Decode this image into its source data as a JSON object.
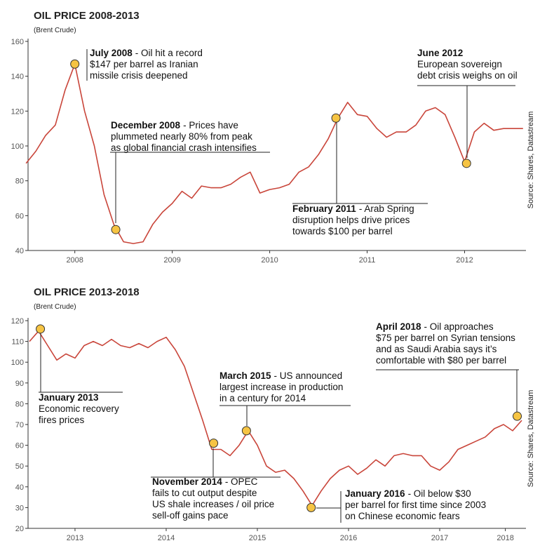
{
  "chart_data": [
    {
      "type": "line",
      "title": "OIL PRICE 2008-2013",
      "subtitle": "(Brent Crude)",
      "source": "Source: Shares, Datastream",
      "color": "#c9453a",
      "x": [
        2007.5,
        2007.6,
        2007.7,
        2007.8,
        2007.9,
        2008.0,
        2008.1,
        2008.2,
        2008.3,
        2008.4,
        2008.5,
        2008.6,
        2008.7,
        2008.8,
        2008.9,
        2009.0,
        2009.1,
        2009.2,
        2009.3,
        2009.4,
        2009.5,
        2009.6,
        2009.7,
        2009.8,
        2009.9,
        2010.0,
        2010.1,
        2010.2,
        2010.3,
        2010.4,
        2010.5,
        2010.6,
        2010.7,
        2010.8,
        2010.9,
        2011.0,
        2011.1,
        2011.2,
        2011.3,
        2011.4,
        2011.5,
        2011.6,
        2011.7,
        2011.8,
        2011.9,
        2012.0,
        2012.1,
        2012.2,
        2012.3,
        2012.4,
        2012.5,
        2012.6
      ],
      "values": [
        90,
        97,
        106,
        112,
        132,
        147,
        120,
        100,
        72,
        55,
        45,
        44,
        45,
        55,
        62,
        67,
        74,
        70,
        77,
        76,
        76,
        78,
        82,
        85,
        73,
        75,
        76,
        78,
        85,
        88,
        95,
        104,
        116,
        125,
        118,
        117,
        110,
        105,
        108,
        108,
        112,
        120,
        122,
        118,
        105,
        91,
        108,
        113,
        109,
        110,
        110,
        110
      ],
      "xlim": [
        2007.52,
        2012.63
      ],
      "xticks": [
        2008,
        2009,
        2010,
        2011,
        2012
      ],
      "ylim": [
        40,
        160
      ],
      "yticks": [
        40,
        60,
        80,
        100,
        120,
        140,
        160
      ],
      "annotations": [
        {
          "x": 2008.0,
          "y": 147,
          "title": "July 2008",
          "lines": [
            "- Oil hit a record",
            "$147 per barrel as Iranian",
            "missile crisis deepened"
          ]
        },
        {
          "x": 2008.42,
          "y": 52,
          "title": "December 2008",
          "lines": [
            "- Prices have",
            "plummeted nearly 80% from peak",
            "as global financial crash intensifies"
          ]
        },
        {
          "x": 2010.68,
          "y": 116,
          "title": "February 2011",
          "lines": [
            "- Arab Spring",
            "disruption helps drive prices",
            "towards $100 per barrel"
          ]
        },
        {
          "x": 2012.02,
          "y": 90,
          "title": "June 2012",
          "lines": [
            "European sovereign",
            "debt crisis weighs on oil"
          ]
        }
      ]
    },
    {
      "type": "line",
      "title": "OIL PRICE 2013-2018",
      "subtitle": "(Brent Crude)",
      "source": "Source: Shares, Datastream",
      "color": "#c9453a",
      "x": [
        2012.5,
        2012.6,
        2012.7,
        2012.8,
        2012.9,
        2013.0,
        2013.1,
        2013.2,
        2013.3,
        2013.4,
        2013.5,
        2013.6,
        2013.7,
        2013.8,
        2013.9,
        2014.0,
        2014.1,
        2014.2,
        2014.3,
        2014.4,
        2014.5,
        2014.6,
        2014.7,
        2014.8,
        2014.9,
        2015.0,
        2015.1,
        2015.2,
        2015.3,
        2015.4,
        2015.5,
        2015.6,
        2015.7,
        2015.8,
        2015.9,
        2016.0,
        2016.1,
        2016.2,
        2016.3,
        2016.4,
        2016.5,
        2016.6,
        2016.7,
        2016.8,
        2016.9,
        2017.0,
        2017.1,
        2017.2,
        2017.3,
        2017.4,
        2017.5,
        2017.6,
        2017.7,
        2017.8,
        2017.9
      ],
      "values": [
        110,
        115,
        108,
        101,
        104,
        102,
        108,
        110,
        108,
        111,
        108,
        107,
        109,
        107,
        110,
        112,
        106,
        98,
        85,
        72,
        58,
        58,
        55,
        60,
        67,
        60,
        50,
        47,
        48,
        44,
        38,
        31,
        38,
        44,
        48,
        50,
        46,
        49,
        53,
        50,
        55,
        56,
        55,
        55,
        50,
        48,
        52,
        58,
        60,
        62,
        64,
        68,
        70,
        67,
        72
      ],
      "xlim": [
        2012.485,
        2017.946
      ],
      "xticks": [
        2013,
        2014,
        2015,
        2016,
        2017,
        {
          "value": 2017.72,
          "label": "2018"
        }
      ],
      "ylim": [
        20,
        120
      ],
      "yticks": [
        20,
        30,
        40,
        50,
        60,
        70,
        80,
        90,
        100,
        110,
        120
      ],
      "annotations": [
        {
          "x": 2012.62,
          "y": 116,
          "title": "January 2013",
          "lines": [
            "Economic recovery",
            "fires prices"
          ]
        },
        {
          "x": 2014.52,
          "y": 61,
          "title": "November 2014",
          "lines": [
            "- OPEC",
            "fails to cut output despite",
            "US shale increases / oil price",
            "sell-off gains pace"
          ]
        },
        {
          "x": 2014.88,
          "y": 67,
          "title": "March 2015",
          "lines": [
            "- US announced",
            "largest increase in production",
            "in a century for 2014"
          ]
        },
        {
          "x": 2015.59,
          "y": 30,
          "title": "January 2016",
          "lines": [
            "- Oil below $30",
            "per barrel for first time since 2003",
            "on Chinese economic fears"
          ]
        },
        {
          "x": 2017.85,
          "y": 74,
          "title": "April 2018",
          "lines": [
            "- Oil approaches",
            "$75 per barrel on Syrian tensions",
            "and as Saudi Arabia says it’s",
            "comfortable with $80 per barrel"
          ]
        }
      ]
    }
  ]
}
